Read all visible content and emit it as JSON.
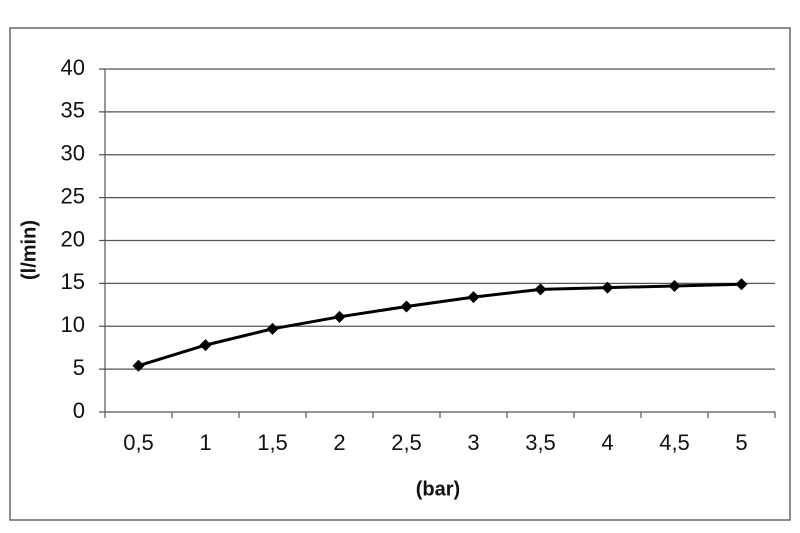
{
  "chart_data": {
    "type": "line",
    "x_label": "(bar)",
    "y_label": "(l/min)",
    "categories": [
      "0,5",
      "1",
      "1,5",
      "2",
      "2,5",
      "3",
      "3,5",
      "4",
      "4,5",
      "5"
    ],
    "values": [
      5.4,
      7.8,
      9.7,
      11.1,
      12.3,
      13.4,
      14.3,
      14.5,
      14.7,
      14.9
    ],
    "color": "#000000",
    "ylim": [
      0,
      40
    ],
    "yticks": [
      0,
      5,
      10,
      15,
      20,
      25,
      30,
      35,
      40
    ],
    "grid": true
  }
}
